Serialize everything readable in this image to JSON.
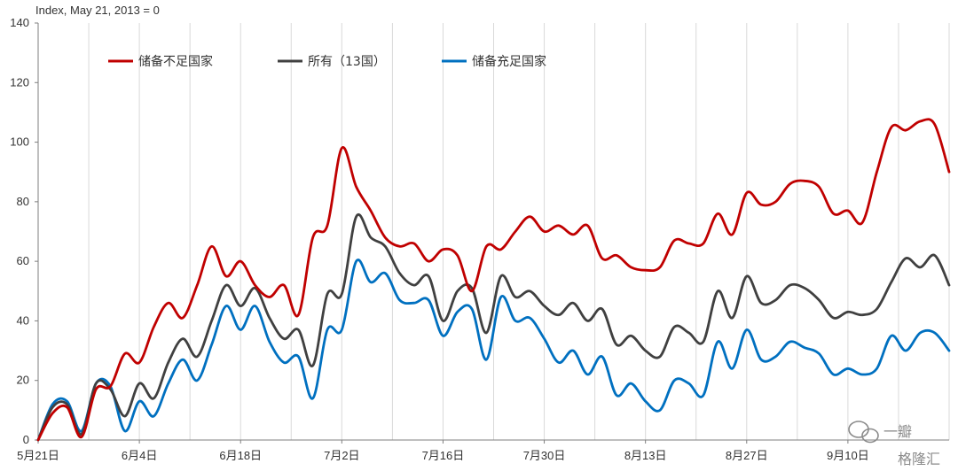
{
  "chart_data": {
    "type": "line",
    "ylabel": "Index, May 21, 2013 = 0",
    "ylim": [
      0,
      140
    ],
    "yticks": [
      0,
      20,
      40,
      60,
      80,
      100,
      120,
      140
    ],
    "x_ticks": [
      "5月21日",
      "6月4日",
      "6月18日",
      "7月2日",
      "7月16日",
      "7月30日",
      "8月13日",
      "8月27日",
      "9月10日"
    ],
    "x": [
      0,
      2,
      4,
      6,
      8,
      10,
      12,
      14,
      16,
      18,
      20,
      22,
      24,
      26,
      28,
      30,
      32,
      34,
      36,
      38,
      40,
      42,
      44,
      46,
      48,
      50,
      52,
      54,
      56,
      58,
      60,
      62,
      64,
      66,
      68,
      70,
      72,
      74,
      76,
      78,
      80,
      82,
      84,
      86,
      88,
      90,
      92,
      94,
      96,
      98,
      100,
      102,
      104,
      106,
      108,
      110,
      112,
      114,
      116,
      118,
      120,
      122,
      124,
      126
    ],
    "grid": "vertical",
    "legend_position": "top-left",
    "series": [
      {
        "name": "储备不足国家",
        "color": "#c00000",
        "values": [
          0,
          9,
          11,
          1,
          17,
          18,
          29,
          26,
          38,
          46,
          41,
          52,
          65,
          55,
          60,
          52,
          48,
          52,
          42,
          68,
          72,
          98,
          85,
          77,
          68,
          65,
          66,
          60,
          64,
          62,
          50,
          65,
          64,
          70,
          75,
          70,
          72,
          69,
          72,
          61,
          62,
          58,
          57,
          58,
          67,
          66,
          66,
          76,
          69,
          83,
          79,
          80,
          86,
          87,
          85,
          76,
          77,
          73,
          90,
          105,
          104,
          107,
          106,
          90
        ]
      },
      {
        "name": "所有（13国）",
        "color": "#404040",
        "values": [
          0,
          11,
          12,
          2,
          19,
          17,
          8,
          19,
          14,
          26,
          34,
          28,
          40,
          52,
          45,
          51,
          41,
          34,
          37,
          25,
          49,
          49,
          75,
          68,
          65,
          56,
          52,
          55,
          40,
          50,
          51,
          36,
          55,
          48,
          50,
          45,
          42,
          46,
          40,
          44,
          32,
          35,
          30,
          28,
          38,
          36,
          33,
          50,
          41,
          55,
          46,
          47,
          52,
          51,
          47,
          41,
          43,
          42,
          44,
          53,
          61,
          58,
          62,
          52
        ]
      },
      {
        "name": "储备充足国家",
        "color": "#0070c0",
        "values": [
          0,
          12,
          13,
          3,
          19,
          18,
          3,
          13,
          8,
          19,
          27,
          20,
          32,
          45,
          37,
          45,
          33,
          26,
          28,
          14,
          37,
          37,
          60,
          53,
          56,
          47,
          46,
          47,
          35,
          43,
          44,
          27,
          48,
          40,
          41,
          34,
          26,
          30,
          22,
          28,
          15,
          19,
          13,
          10,
          20,
          19,
          15,
          33,
          24,
          37,
          27,
          28,
          33,
          31,
          29,
          22,
          24,
          22,
          24,
          35,
          30,
          36,
          36,
          30
        ]
      }
    ]
  },
  "watermark": {
    "label": "一瓣",
    "sub": "格隆汇"
  },
  "colors": {
    "grid": "#d9d9d9",
    "axis": "#7f7f7f"
  }
}
